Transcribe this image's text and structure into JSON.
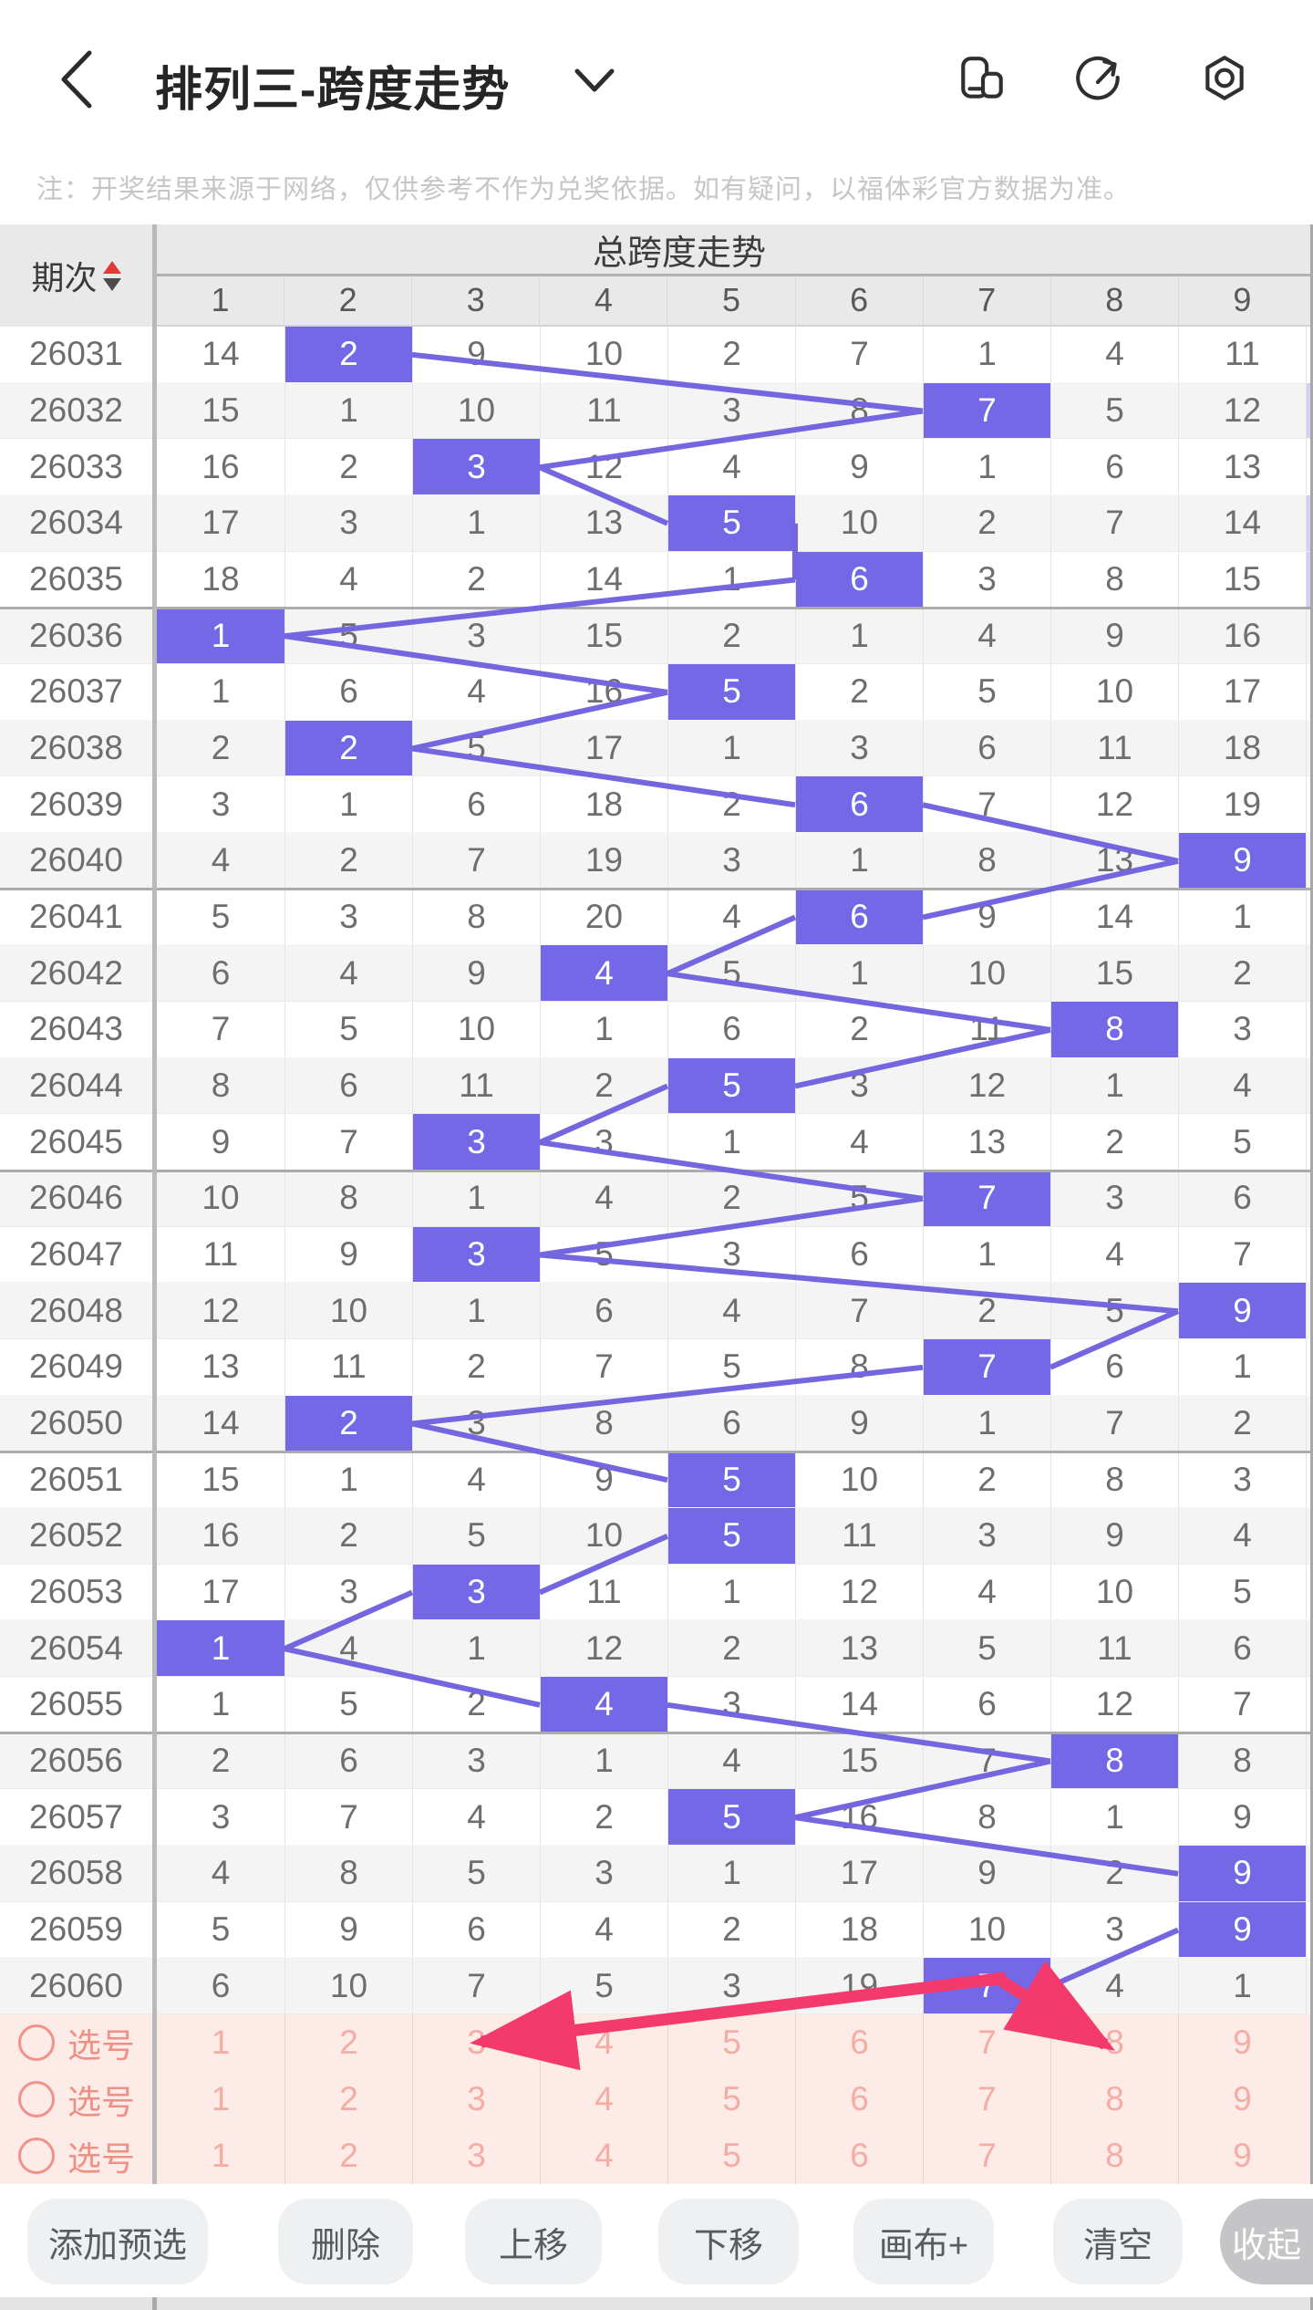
{
  "nav": {
    "title": "排列三-跨度走势",
    "icons": [
      "multiwindow-icon",
      "share-icon",
      "settings-icon"
    ]
  },
  "note": "注：开奖结果来源于网络，仅供参考不作为兑奖依据。如有疑问，以福体彩官方数据为准。",
  "table": {
    "period_label": "期次",
    "group_title": "总跨度走势",
    "columns": [
      "1",
      "2",
      "3",
      "4",
      "5",
      "6",
      "7",
      "8",
      "9"
    ],
    "rows": [
      {
        "period": "26031",
        "values": [
          14,
          2,
          9,
          10,
          2,
          7,
          1,
          4,
          11
        ],
        "hit": 2
      },
      {
        "period": "26032",
        "values": [
          15,
          1,
          10,
          11,
          3,
          8,
          7,
          5,
          12
        ],
        "hit": 7
      },
      {
        "period": "26033",
        "values": [
          16,
          2,
          3,
          12,
          4,
          9,
          1,
          6,
          13
        ],
        "hit": 3
      },
      {
        "period": "26034",
        "values": [
          17,
          3,
          1,
          13,
          5,
          10,
          2,
          7,
          14
        ],
        "hit": 5
      },
      {
        "period": "26035",
        "values": [
          18,
          4,
          2,
          14,
          1,
          6,
          3,
          8,
          15
        ],
        "hit": 6
      },
      {
        "period": "26036",
        "values": [
          1,
          5,
          3,
          15,
          2,
          1,
          4,
          9,
          16
        ],
        "hit": 1
      },
      {
        "period": "26037",
        "values": [
          1,
          6,
          4,
          16,
          5,
          2,
          5,
          10,
          17
        ],
        "hit": 5
      },
      {
        "period": "26038",
        "values": [
          2,
          2,
          5,
          17,
          1,
          3,
          6,
          11,
          18
        ],
        "hit": 2
      },
      {
        "period": "26039",
        "values": [
          3,
          1,
          6,
          18,
          2,
          6,
          7,
          12,
          19
        ],
        "hit": 6
      },
      {
        "period": "26040",
        "values": [
          4,
          2,
          7,
          19,
          3,
          1,
          8,
          13,
          9
        ],
        "hit": 9
      },
      {
        "period": "26041",
        "values": [
          5,
          3,
          8,
          20,
          4,
          6,
          9,
          14,
          1
        ],
        "hit": 6
      },
      {
        "period": "26042",
        "values": [
          6,
          4,
          9,
          4,
          5,
          1,
          10,
          15,
          2
        ],
        "hit": 4
      },
      {
        "period": "26043",
        "values": [
          7,
          5,
          10,
          1,
          6,
          2,
          11,
          8,
          3
        ],
        "hit": 8
      },
      {
        "period": "26044",
        "values": [
          8,
          6,
          11,
          2,
          5,
          3,
          12,
          1,
          4
        ],
        "hit": 5
      },
      {
        "period": "26045",
        "values": [
          9,
          7,
          3,
          3,
          1,
          4,
          13,
          2,
          5
        ],
        "hit": 3
      },
      {
        "period": "26046",
        "values": [
          10,
          8,
          1,
          4,
          2,
          5,
          7,
          3,
          6
        ],
        "hit": 7
      },
      {
        "period": "26047",
        "values": [
          11,
          9,
          3,
          5,
          3,
          6,
          1,
          4,
          7
        ],
        "hit": 3
      },
      {
        "period": "26048",
        "values": [
          12,
          10,
          1,
          6,
          4,
          7,
          2,
          5,
          9
        ],
        "hit": 9
      },
      {
        "period": "26049",
        "values": [
          13,
          11,
          2,
          7,
          5,
          8,
          7,
          6,
          1
        ],
        "hit": 7
      },
      {
        "period": "26050",
        "values": [
          14,
          2,
          3,
          8,
          6,
          9,
          1,
          7,
          2
        ],
        "hit": 2
      },
      {
        "period": "26051",
        "values": [
          15,
          1,
          4,
          9,
          5,
          10,
          2,
          8,
          3
        ],
        "hit": 5
      },
      {
        "period": "26052",
        "values": [
          16,
          2,
          5,
          10,
          5,
          11,
          3,
          9,
          4
        ],
        "hit": 5
      },
      {
        "period": "26053",
        "values": [
          17,
          3,
          3,
          11,
          1,
          12,
          4,
          10,
          5
        ],
        "hit": 3
      },
      {
        "period": "26054",
        "values": [
          1,
          4,
          1,
          12,
          2,
          13,
          5,
          11,
          6
        ],
        "hit": 1
      },
      {
        "period": "26055",
        "values": [
          1,
          5,
          2,
          4,
          3,
          14,
          6,
          12,
          7
        ],
        "hit": 4
      },
      {
        "period": "26056",
        "values": [
          2,
          6,
          3,
          1,
          4,
          15,
          7,
          8,
          8
        ],
        "hit": 8
      },
      {
        "period": "26057",
        "values": [
          3,
          7,
          4,
          2,
          5,
          16,
          8,
          1,
          9
        ],
        "hit": 5
      },
      {
        "period": "26058",
        "values": [
          4,
          8,
          5,
          3,
          1,
          17,
          9,
          2,
          9
        ],
        "hit": 9
      },
      {
        "period": "26059",
        "values": [
          5,
          9,
          6,
          4,
          2,
          18,
          10,
          3,
          9
        ],
        "hit": 9
      },
      {
        "period": "26060",
        "values": [
          6,
          10,
          7,
          5,
          3,
          19,
          7,
          4,
          1
        ],
        "hit": 7
      }
    ],
    "edge_highlight_rows": [
      "26032",
      "26034",
      "26035"
    ]
  },
  "selection": {
    "label": "选号",
    "numbers": [
      "1",
      "2",
      "3",
      "4",
      "5",
      "6",
      "7",
      "8",
      "9"
    ],
    "row_count": 3
  },
  "toolbar": {
    "buttons": [
      "添加预选",
      "删除",
      "上移",
      "下移",
      "画布+",
      "清空",
      "收起"
    ]
  },
  "annotations": {
    "arrows": [
      {
        "from_period": "26060",
        "from_col": 7,
        "to": "selection-row-1-col-3"
      },
      {
        "from_period": "26060",
        "from_col": 7,
        "to": "selection-row-1-col-8"
      }
    ]
  },
  "colors": {
    "highlight": "#7468e6",
    "trend_line": "#7466df",
    "arrow": "#f43a6d",
    "selection_bg": "#fdebe7",
    "selection_text": "#ee9086",
    "header_bg": "#e9e9ea"
  }
}
